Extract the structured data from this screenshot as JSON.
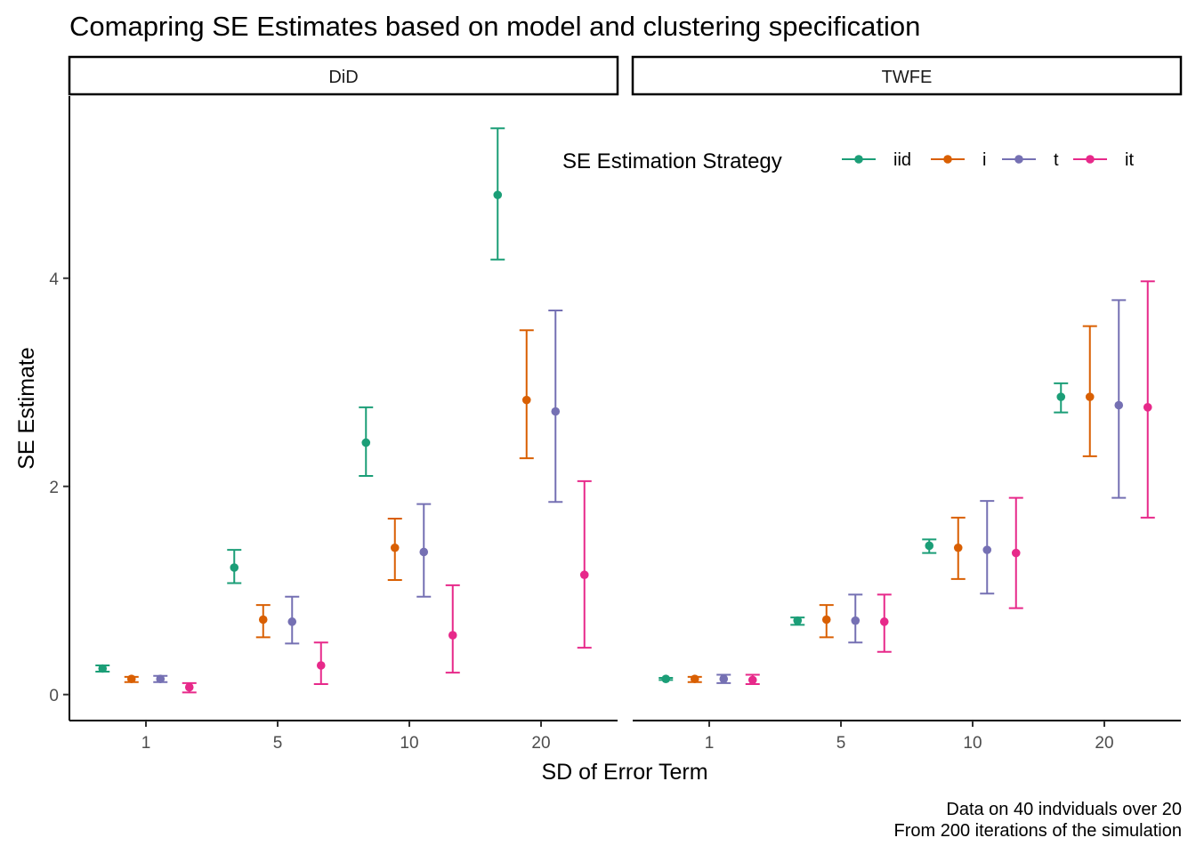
{
  "chart_data": {
    "type": "errorbar",
    "title": "Comapring SE Estimates based on model and clustering specification",
    "xlabel": "SD of Error Term",
    "ylabel": "SE Estimate",
    "categories": [
      "1",
      "5",
      "10",
      "20"
    ],
    "yticks": [
      "0",
      "2",
      "4"
    ],
    "ylim": [
      -0.25,
      5.75
    ],
    "grid": false,
    "legend": {
      "title": "SE Estimation Strategy",
      "position": "top-right",
      "entries": [
        {
          "name": "iid",
          "color": "#1b9e77"
        },
        {
          "name": "i",
          "color": "#d95f02"
        },
        {
          "name": "t",
          "color": "#7570b3"
        },
        {
          "name": "it",
          "color": "#e7298a"
        }
      ]
    },
    "caption": [
      "Data on 40 indviduals over 20",
      "From 200 iterations of the simulation"
    ],
    "panels": [
      {
        "label": "DiD",
        "series": [
          {
            "name": "iid",
            "mean": [
              0.25,
              1.22,
              2.42,
              4.8
            ],
            "lower": [
              0.22,
              1.07,
              2.1,
              4.18
            ],
            "upper": [
              0.28,
              1.39,
              2.76,
              5.44
            ]
          },
          {
            "name": "i",
            "mean": [
              0.15,
              0.72,
              1.41,
              2.83
            ],
            "lower": [
              0.12,
              0.55,
              1.1,
              2.27
            ],
            "upper": [
              0.17,
              0.86,
              1.69,
              3.5
            ]
          },
          {
            "name": "t",
            "mean": [
              0.15,
              0.7,
              1.37,
              2.72
            ],
            "lower": [
              0.12,
              0.49,
              0.94,
              1.85
            ],
            "upper": [
              0.18,
              0.94,
              1.83,
              3.69
            ]
          },
          {
            "name": "it",
            "mean": [
              0.07,
              0.28,
              0.57,
              1.15
            ],
            "lower": [
              0.02,
              0.1,
              0.21,
              0.45
            ],
            "upper": [
              0.11,
              0.5,
              1.05,
              2.05
            ]
          }
        ]
      },
      {
        "label": "TWFE",
        "series": [
          {
            "name": "iid",
            "mean": [
              0.15,
              0.71,
              1.43,
              2.86
            ],
            "lower": [
              0.14,
              0.67,
              1.36,
              2.71
            ],
            "upper": [
              0.16,
              0.74,
              1.49,
              2.99
            ]
          },
          {
            "name": "i",
            "mean": [
              0.15,
              0.72,
              1.41,
              2.86
            ],
            "lower": [
              0.12,
              0.55,
              1.11,
              2.29
            ],
            "upper": [
              0.17,
              0.86,
              1.7,
              3.54
            ]
          },
          {
            "name": "t",
            "mean": [
              0.15,
              0.71,
              1.39,
              2.78
            ],
            "lower": [
              0.11,
              0.5,
              0.97,
              1.89
            ],
            "upper": [
              0.19,
              0.96,
              1.86,
              3.79
            ]
          },
          {
            "name": "it",
            "mean": [
              0.14,
              0.7,
              1.36,
              2.76
            ],
            "lower": [
              0.1,
              0.41,
              0.83,
              1.7
            ],
            "upper": [
              0.19,
              0.96,
              1.89,
              3.97
            ]
          }
        ]
      }
    ]
  }
}
